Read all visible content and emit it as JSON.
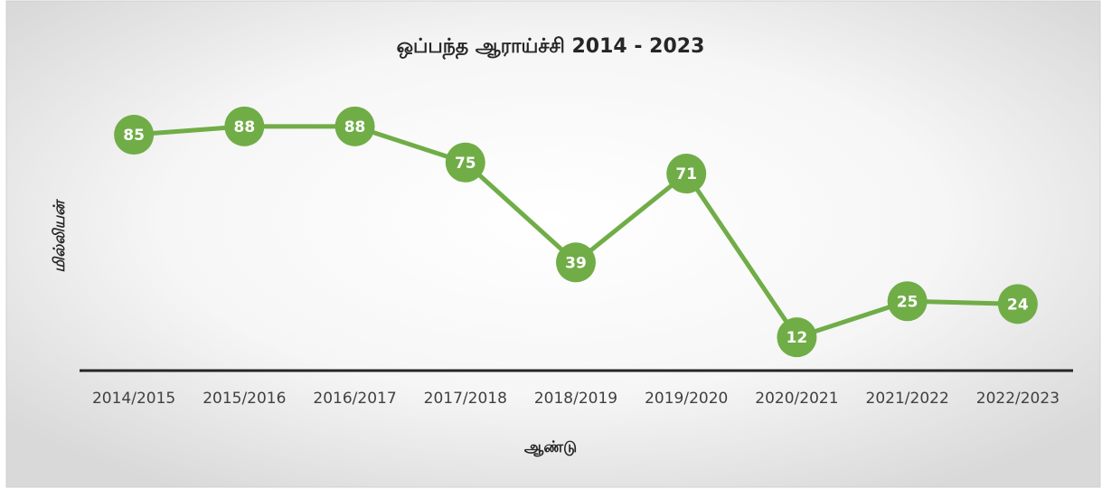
{
  "chart_data": {
    "type": "line",
    "title": "ஒப்பந்த ஆராய்ச்சி 2014 - 2023",
    "y_label": "மில்லியன்",
    "x_label": "ஆண்டு",
    "categories": [
      "2014/2015",
      "2015/2016",
      "2016/2017",
      "2017/2018",
      "2018/2019",
      "2019/2020",
      "2020/2021",
      "2021/2022",
      "2022/2023"
    ],
    "series": [
      {
        "name": "மில்லியன்",
        "color": "#70ad47",
        "values": [
          85,
          88,
          88,
          75,
          39,
          71,
          12,
          25,
          24
        ]
      }
    ],
    "ylim": [
      0,
      100
    ]
  }
}
